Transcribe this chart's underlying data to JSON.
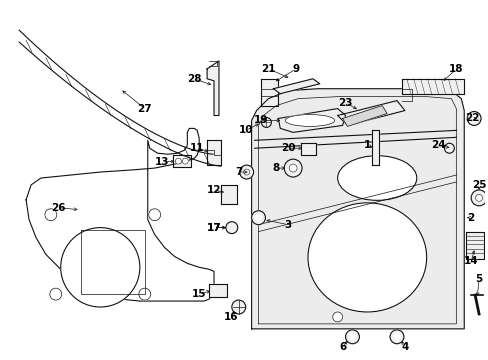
{
  "background_color": "#ffffff",
  "line_color": "#111111",
  "label_color": "#000000",
  "fig_width": 4.89,
  "fig_height": 3.6,
  "dpi": 100
}
